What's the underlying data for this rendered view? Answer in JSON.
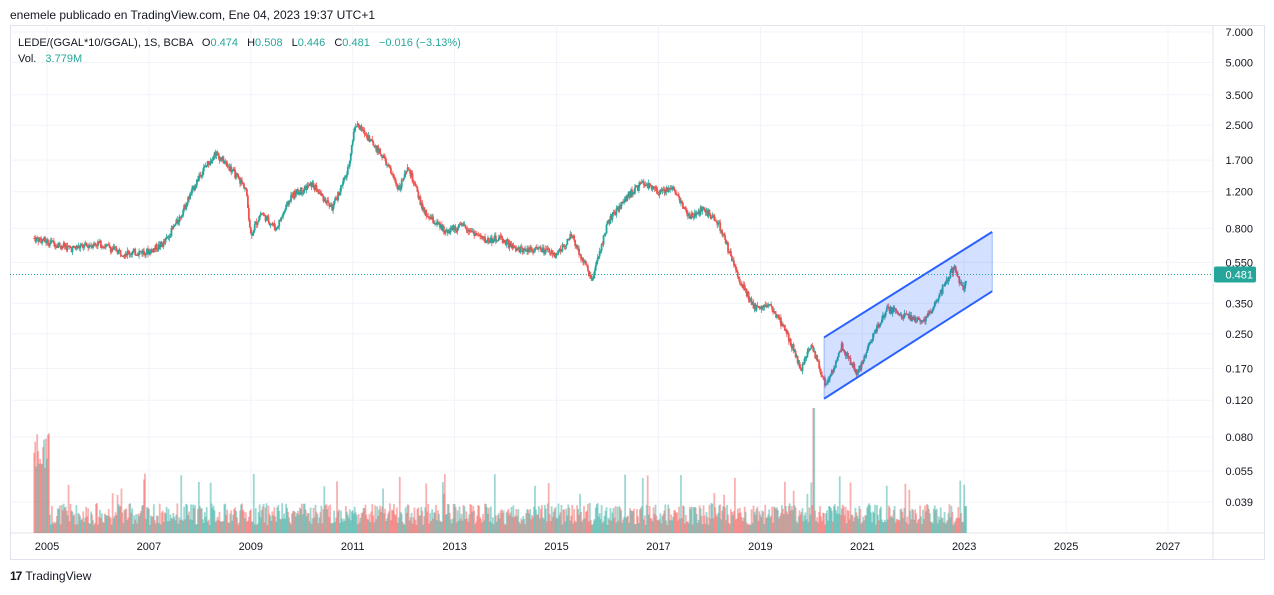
{
  "header": {
    "publish_line": "enemele publicado en TradingView.com, Ene 04, 2023 19:37 UTC+1"
  },
  "legend": {
    "symbol": "LEDE/(GGAL*10/GGAL), 1S, BCBA",
    "open_label": "O",
    "open": "0.474",
    "high_label": "H",
    "high": "0.508",
    "low_label": "L",
    "low": "0.446",
    "close_label": "C",
    "close": "0.481",
    "change": "−0.016 (−3.13%)",
    "volume_label": "Vol.",
    "volume": "3.779M"
  },
  "footer": {
    "brand": "TradingView",
    "logo": "17"
  },
  "colors": {
    "up": "#26a69a",
    "down": "#ef5350",
    "channel": "#2962ff",
    "channel_fill": "#2962ff33",
    "last_price_bg": "#26a69a"
  },
  "chart_data": {
    "type": "candlestick",
    "y_scale": "log",
    "x_tick_labels": [
      "2005",
      "2007",
      "2009",
      "2011",
      "2013",
      "2015",
      "2017",
      "2019",
      "2021",
      "2023",
      "2025",
      "2027"
    ],
    "y_tick_labels": [
      "7.000",
      "5.000",
      "3.500",
      "2.500",
      "1.700",
      "1.200",
      "0.800",
      "0.550",
      "0.350",
      "0.250",
      "0.170",
      "0.120",
      "0.080",
      "0.055",
      "0.039"
    ],
    "y_tick_values": [
      7.0,
      5.0,
      3.5,
      2.5,
      1.7,
      1.2,
      0.8,
      0.55,
      0.35,
      0.25,
      0.17,
      0.12,
      0.08,
      0.055,
      0.039
    ],
    "last_price": "0.481",
    "price_path": [
      [
        2004.75,
        0.72
      ],
      [
        2005.5,
        0.64
      ],
      [
        2006.0,
        0.68
      ],
      [
        2006.5,
        0.61
      ],
      [
        2007.0,
        0.62
      ],
      [
        2007.3,
        0.68
      ],
      [
        2007.6,
        0.9
      ],
      [
        2008.0,
        1.45
      ],
      [
        2008.3,
        1.85
      ],
      [
        2008.6,
        1.55
      ],
      [
        2008.9,
        1.25
      ],
      [
        2009.0,
        0.75
      ],
      [
        2009.2,
        0.95
      ],
      [
        2009.5,
        0.8
      ],
      [
        2009.8,
        1.15
      ],
      [
        2010.2,
        1.3
      ],
      [
        2010.6,
        1.0
      ],
      [
        2010.9,
        1.5
      ],
      [
        2011.05,
        2.55
      ],
      [
        2011.3,
        2.2
      ],
      [
        2011.6,
        1.75
      ],
      [
        2011.9,
        1.25
      ],
      [
        2012.1,
        1.55
      ],
      [
        2012.4,
        0.95
      ],
      [
        2012.8,
        0.78
      ],
      [
        2013.2,
        0.82
      ],
      [
        2013.6,
        0.7
      ],
      [
        2013.9,
        0.72
      ],
      [
        2014.2,
        0.63
      ],
      [
        2014.6,
        0.64
      ],
      [
        2015.0,
        0.6
      ],
      [
        2015.3,
        0.74
      ],
      [
        2015.7,
        0.45
      ],
      [
        2016.0,
        0.85
      ],
      [
        2016.4,
        1.15
      ],
      [
        2016.7,
        1.32
      ],
      [
        2017.0,
        1.2
      ],
      [
        2017.3,
        1.25
      ],
      [
        2017.6,
        0.9
      ],
      [
        2017.9,
        1.0
      ],
      [
        2018.2,
        0.82
      ],
      [
        2018.6,
        0.45
      ],
      [
        2018.9,
        0.33
      ],
      [
        2019.2,
        0.34
      ],
      [
        2019.5,
        0.26
      ],
      [
        2019.8,
        0.17
      ],
      [
        2020.0,
        0.22
      ],
      [
        2020.3,
        0.14
      ],
      [
        2020.6,
        0.22
      ],
      [
        2020.9,
        0.16
      ],
      [
        2021.2,
        0.24
      ],
      [
        2021.5,
        0.33
      ],
      [
        2021.9,
        0.3
      ],
      [
        2022.2,
        0.28
      ],
      [
        2022.5,
        0.38
      ],
      [
        2022.8,
        0.52
      ],
      [
        2023.0,
        0.4
      ],
      [
        2023.05,
        0.481
      ]
    ],
    "channel": {
      "upper": [
        [
          2020.25,
          0.24
        ],
        [
          2023.55,
          0.77
        ]
      ],
      "lower": [
        [
          2020.25,
          0.122
        ],
        [
          2023.55,
          0.4
        ]
      ]
    },
    "volume_note": "relative bars, peak in early 2020"
  }
}
